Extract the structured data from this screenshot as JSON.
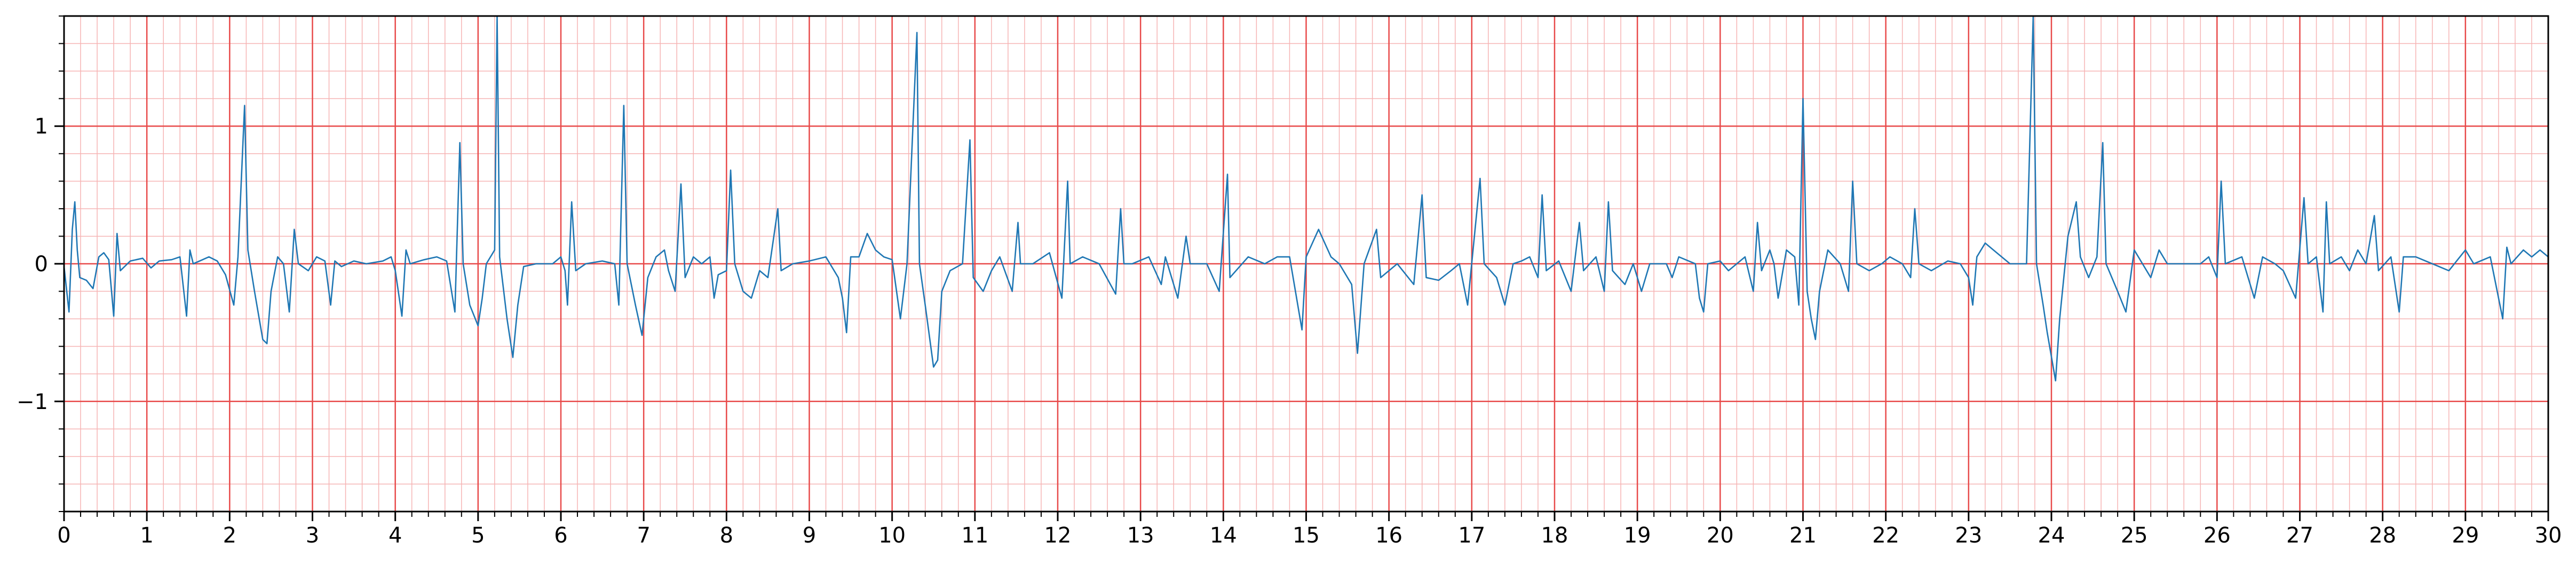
{
  "chart_data": {
    "type": "line",
    "title": "",
    "xlabel": "",
    "ylabel": "",
    "xlim": [
      0,
      30
    ],
    "ylim": [
      -1.8,
      1.8
    ],
    "x_ticks": [
      "0",
      "1",
      "2",
      "3",
      "4",
      "5",
      "6",
      "7",
      "8",
      "9",
      "10",
      "11",
      "12",
      "13",
      "14",
      "15",
      "16",
      "17",
      "18",
      "19",
      "20",
      "21",
      "22",
      "23",
      "24",
      "25",
      "26",
      "27",
      "28",
      "29",
      "30"
    ],
    "y_ticks": [
      {
        "value": -1,
        "label": "−1"
      },
      {
        "value": 0,
        "label": "0"
      },
      {
        "value": 1,
        "label": "1"
      }
    ],
    "grid": {
      "major_x_step": 1,
      "major_y_step": 1,
      "minor_x_step": 0.2,
      "minor_y_step": 0.2,
      "major_color": "#e84a4a",
      "minor_color": "#f6b4b4"
    },
    "series": [
      {
        "color": "#1f77b4",
        "points": [
          [
            0.0,
            -0.02
          ],
          [
            0.06,
            -0.35
          ],
          [
            0.1,
            0.25
          ],
          [
            0.13,
            0.45
          ],
          [
            0.16,
            0.1
          ],
          [
            0.19,
            -0.1
          ],
          [
            0.27,
            -0.12
          ],
          [
            0.35,
            -0.18
          ],
          [
            0.42,
            0.05
          ],
          [
            0.48,
            0.08
          ],
          [
            0.54,
            0.03
          ],
          [
            0.6,
            -0.38
          ],
          [
            0.64,
            0.22
          ],
          [
            0.68,
            -0.05
          ],
          [
            0.8,
            0.02
          ],
          [
            0.95,
            0.04
          ],
          [
            1.05,
            -0.03
          ],
          [
            1.15,
            0.02
          ],
          [
            1.3,
            0.03
          ],
          [
            1.4,
            0.05
          ],
          [
            1.48,
            -0.38
          ],
          [
            1.52,
            0.1
          ],
          [
            1.56,
            0.0
          ],
          [
            1.75,
            0.05
          ],
          [
            1.85,
            0.02
          ],
          [
            1.95,
            -0.08
          ],
          [
            2.05,
            -0.3
          ],
          [
            2.1,
            0.05
          ],
          [
            2.18,
            1.15
          ],
          [
            2.22,
            0.1
          ],
          [
            2.3,
            -0.2
          ],
          [
            2.4,
            -0.55
          ],
          [
            2.45,
            -0.58
          ],
          [
            2.5,
            -0.2
          ],
          [
            2.58,
            0.05
          ],
          [
            2.65,
            0.0
          ],
          [
            2.72,
            -0.35
          ],
          [
            2.78,
            0.25
          ],
          [
            2.83,
            0.0
          ],
          [
            2.95,
            -0.05
          ],
          [
            3.05,
            0.05
          ],
          [
            3.15,
            0.02
          ],
          [
            3.22,
            -0.3
          ],
          [
            3.27,
            0.02
          ],
          [
            3.35,
            -0.02
          ],
          [
            3.5,
            0.02
          ],
          [
            3.65,
            0.0
          ],
          [
            3.85,
            0.02
          ],
          [
            3.95,
            0.05
          ],
          [
            4.0,
            -0.05
          ],
          [
            4.08,
            -0.38
          ],
          [
            4.13,
            0.1
          ],
          [
            4.18,
            0.0
          ],
          [
            4.35,
            0.03
          ],
          [
            4.5,
            0.05
          ],
          [
            4.62,
            0.02
          ],
          [
            4.72,
            -0.35
          ],
          [
            4.78,
            0.88
          ],
          [
            4.82,
            0.0
          ],
          [
            4.9,
            -0.3
          ],
          [
            5.0,
            -0.45
          ],
          [
            5.05,
            -0.25
          ],
          [
            5.1,
            0.0
          ],
          [
            5.2,
            0.1
          ],
          [
            5.23,
            1.8
          ],
          [
            5.26,
            0.05
          ],
          [
            5.35,
            -0.4
          ],
          [
            5.42,
            -0.68
          ],
          [
            5.48,
            -0.3
          ],
          [
            5.55,
            -0.02
          ],
          [
            5.7,
            0.0
          ],
          [
            5.9,
            0.0
          ],
          [
            6.0,
            0.05
          ],
          [
            6.05,
            -0.05
          ],
          [
            6.08,
            -0.3
          ],
          [
            6.13,
            0.45
          ],
          [
            6.18,
            -0.05
          ],
          [
            6.3,
            0.0
          ],
          [
            6.5,
            0.02
          ],
          [
            6.65,
            0.0
          ],
          [
            6.7,
            -0.3
          ],
          [
            6.76,
            1.15
          ],
          [
            6.8,
            0.0
          ],
          [
            6.9,
            -0.3
          ],
          [
            6.98,
            -0.52
          ],
          [
            7.05,
            -0.1
          ],
          [
            7.15,
            0.05
          ],
          [
            7.25,
            0.1
          ],
          [
            7.3,
            -0.05
          ],
          [
            7.38,
            -0.2
          ],
          [
            7.45,
            0.58
          ],
          [
            7.5,
            -0.1
          ],
          [
            7.6,
            0.05
          ],
          [
            7.7,
            0.0
          ],
          [
            7.8,
            0.05
          ],
          [
            7.85,
            -0.25
          ],
          [
            7.9,
            -0.08
          ],
          [
            8.0,
            -0.05
          ],
          [
            8.05,
            0.68
          ],
          [
            8.1,
            0.0
          ],
          [
            8.2,
            -0.2
          ],
          [
            8.3,
            -0.25
          ],
          [
            8.4,
            -0.05
          ],
          [
            8.5,
            -0.1
          ],
          [
            8.62,
            0.4
          ],
          [
            8.66,
            -0.05
          ],
          [
            8.8,
            0.0
          ],
          [
            9.0,
            0.02
          ],
          [
            9.2,
            0.05
          ],
          [
            9.35,
            -0.1
          ],
          [
            9.4,
            -0.25
          ],
          [
            9.45,
            -0.5
          ],
          [
            9.5,
            0.05
          ],
          [
            9.6,
            0.05
          ],
          [
            9.7,
            0.22
          ],
          [
            9.8,
            0.1
          ],
          [
            9.9,
            0.05
          ],
          [
            10.0,
            0.03
          ],
          [
            10.1,
            -0.4
          ],
          [
            10.18,
            0.0
          ],
          [
            10.3,
            1.68
          ],
          [
            10.33,
            0.0
          ],
          [
            10.4,
            -0.3
          ],
          [
            10.5,
            -0.75
          ],
          [
            10.55,
            -0.7
          ],
          [
            10.6,
            -0.2
          ],
          [
            10.7,
            -0.05
          ],
          [
            10.85,
            0.0
          ],
          [
            10.94,
            0.9
          ],
          [
            10.98,
            -0.1
          ],
          [
            11.1,
            -0.2
          ],
          [
            11.2,
            -0.05
          ],
          [
            11.3,
            0.05
          ],
          [
            11.45,
            -0.2
          ],
          [
            11.52,
            0.3
          ],
          [
            11.55,
            0.0
          ],
          [
            11.7,
            0.0
          ],
          [
            11.9,
            0.08
          ],
          [
            12.05,
            -0.25
          ],
          [
            12.12,
            0.6
          ],
          [
            12.15,
            0.0
          ],
          [
            12.3,
            0.05
          ],
          [
            12.5,
            0.0
          ],
          [
            12.7,
            -0.22
          ],
          [
            12.76,
            0.4
          ],
          [
            12.8,
            0.0
          ],
          [
            12.9,
            0.0
          ],
          [
            13.1,
            0.05
          ],
          [
            13.25,
            -0.15
          ],
          [
            13.3,
            0.05
          ],
          [
            13.45,
            -0.25
          ],
          [
            13.55,
            0.2
          ],
          [
            13.6,
            0.0
          ],
          [
            13.8,
            0.0
          ],
          [
            13.95,
            -0.2
          ],
          [
            14.05,
            0.65
          ],
          [
            14.08,
            -0.1
          ],
          [
            14.3,
            0.05
          ],
          [
            14.5,
            0.0
          ],
          [
            14.65,
            0.05
          ],
          [
            14.8,
            0.05
          ],
          [
            14.95,
            -0.48
          ],
          [
            15.0,
            0.05
          ],
          [
            15.15,
            0.25
          ],
          [
            15.3,
            0.05
          ],
          [
            15.4,
            0.0
          ],
          [
            15.55,
            -0.15
          ],
          [
            15.62,
            -0.65
          ],
          [
            15.7,
            0.0
          ],
          [
            15.85,
            0.25
          ],
          [
            15.9,
            -0.1
          ],
          [
            16.1,
            0.0
          ],
          [
            16.3,
            -0.15
          ],
          [
            16.4,
            0.5
          ],
          [
            16.45,
            -0.1
          ],
          [
            16.6,
            -0.12
          ],
          [
            16.75,
            -0.05
          ],
          [
            16.85,
            0.0
          ],
          [
            16.95,
            -0.3
          ],
          [
            17.1,
            0.62
          ],
          [
            17.15,
            0.0
          ],
          [
            17.3,
            -0.1
          ],
          [
            17.4,
            -0.3
          ],
          [
            17.5,
            0.0
          ],
          [
            17.6,
            0.02
          ],
          [
            17.7,
            0.05
          ],
          [
            17.8,
            -0.1
          ],
          [
            17.85,
            0.5
          ],
          [
            17.9,
            -0.05
          ],
          [
            18.05,
            0.02
          ],
          [
            18.2,
            -0.2
          ],
          [
            18.3,
            0.3
          ],
          [
            18.35,
            -0.05
          ],
          [
            18.5,
            0.05
          ],
          [
            18.6,
            -0.2
          ],
          [
            18.65,
            0.45
          ],
          [
            18.7,
            -0.05
          ],
          [
            18.85,
            -0.15
          ],
          [
            18.95,
            0.0
          ],
          [
            19.05,
            -0.2
          ],
          [
            19.15,
            0.0
          ],
          [
            19.25,
            0.0
          ],
          [
            19.35,
            0.0
          ],
          [
            19.42,
            -0.1
          ],
          [
            19.5,
            0.05
          ],
          [
            19.7,
            0.0
          ],
          [
            19.75,
            -0.25
          ],
          [
            19.8,
            -0.35
          ],
          [
            19.85,
            0.0
          ],
          [
            20.0,
            0.02
          ],
          [
            20.1,
            -0.05
          ],
          [
            20.2,
            0.0
          ],
          [
            20.3,
            0.05
          ],
          [
            20.4,
            -0.2
          ],
          [
            20.45,
            0.3
          ],
          [
            20.5,
            -0.05
          ],
          [
            20.6,
            0.1
          ],
          [
            20.65,
            0.0
          ],
          [
            20.7,
            -0.25
          ],
          [
            20.8,
            0.1
          ],
          [
            20.9,
            0.05
          ],
          [
            20.95,
            -0.3
          ],
          [
            21.0,
            1.2
          ],
          [
            21.05,
            -0.2
          ],
          [
            21.1,
            -0.4
          ],
          [
            21.15,
            -0.55
          ],
          [
            21.2,
            -0.2
          ],
          [
            21.3,
            0.1
          ],
          [
            21.45,
            0.0
          ],
          [
            21.55,
            -0.2
          ],
          [
            21.6,
            0.6
          ],
          [
            21.65,
            0.0
          ],
          [
            21.8,
            -0.05
          ],
          [
            21.95,
            0.0
          ],
          [
            22.05,
            0.05
          ],
          [
            22.2,
            0.0
          ],
          [
            22.3,
            -0.1
          ],
          [
            22.35,
            0.4
          ],
          [
            22.4,
            0.0
          ],
          [
            22.55,
            -0.05
          ],
          [
            22.75,
            0.02
          ],
          [
            22.9,
            0.0
          ],
          [
            23.0,
            -0.1
          ],
          [
            23.05,
            -0.3
          ],
          [
            23.1,
            0.05
          ],
          [
            23.2,
            0.15
          ],
          [
            23.3,
            0.1
          ],
          [
            23.4,
            0.05
          ],
          [
            23.5,
            0.0
          ],
          [
            23.7,
            0.0
          ],
          [
            23.78,
            1.8
          ],
          [
            23.82,
            0.0
          ],
          [
            23.9,
            -0.3
          ],
          [
            23.95,
            -0.5
          ],
          [
            24.05,
            -0.85
          ],
          [
            24.1,
            -0.4
          ],
          [
            24.2,
            0.2
          ],
          [
            24.3,
            0.45
          ],
          [
            24.35,
            0.05
          ],
          [
            24.45,
            -0.1
          ],
          [
            24.55,
            0.05
          ],
          [
            24.62,
            0.88
          ],
          [
            24.66,
            0.0
          ],
          [
            24.8,
            -0.2
          ],
          [
            24.9,
            -0.35
          ],
          [
            25.0,
            0.1
          ],
          [
            25.1,
            0.0
          ],
          [
            25.2,
            -0.1
          ],
          [
            25.3,
            0.1
          ],
          [
            25.4,
            0.0
          ],
          [
            25.6,
            0.0
          ],
          [
            25.8,
            0.0
          ],
          [
            25.9,
            0.05
          ],
          [
            26.0,
            -0.1
          ],
          [
            26.05,
            0.6
          ],
          [
            26.1,
            0.0
          ],
          [
            26.3,
            0.05
          ],
          [
            26.45,
            -0.25
          ],
          [
            26.55,
            0.05
          ],
          [
            26.7,
            0.0
          ],
          [
            26.8,
            -0.05
          ],
          [
            26.95,
            -0.25
          ],
          [
            27.05,
            0.48
          ],
          [
            27.1,
            0.0
          ],
          [
            27.2,
            0.05
          ],
          [
            27.28,
            -0.35
          ],
          [
            27.32,
            0.45
          ],
          [
            27.36,
            0.0
          ],
          [
            27.5,
            0.05
          ],
          [
            27.6,
            -0.05
          ],
          [
            27.7,
            0.1
          ],
          [
            27.8,
            0.0
          ],
          [
            27.9,
            0.35
          ],
          [
            27.95,
            -0.05
          ],
          [
            28.1,
            0.05
          ],
          [
            28.2,
            -0.35
          ],
          [
            28.25,
            0.05
          ],
          [
            28.4,
            0.05
          ],
          [
            28.6,
            0.0
          ],
          [
            28.8,
            -0.05
          ],
          [
            29.0,
            0.1
          ],
          [
            29.1,
            0.0
          ],
          [
            29.3,
            0.05
          ],
          [
            29.45,
            -0.4
          ],
          [
            29.5,
            0.12
          ],
          [
            29.55,
            0.0
          ],
          [
            29.7,
            0.1
          ],
          [
            29.8,
            0.05
          ],
          [
            29.9,
            0.1
          ],
          [
            30.0,
            0.05
          ]
        ]
      }
    ]
  }
}
